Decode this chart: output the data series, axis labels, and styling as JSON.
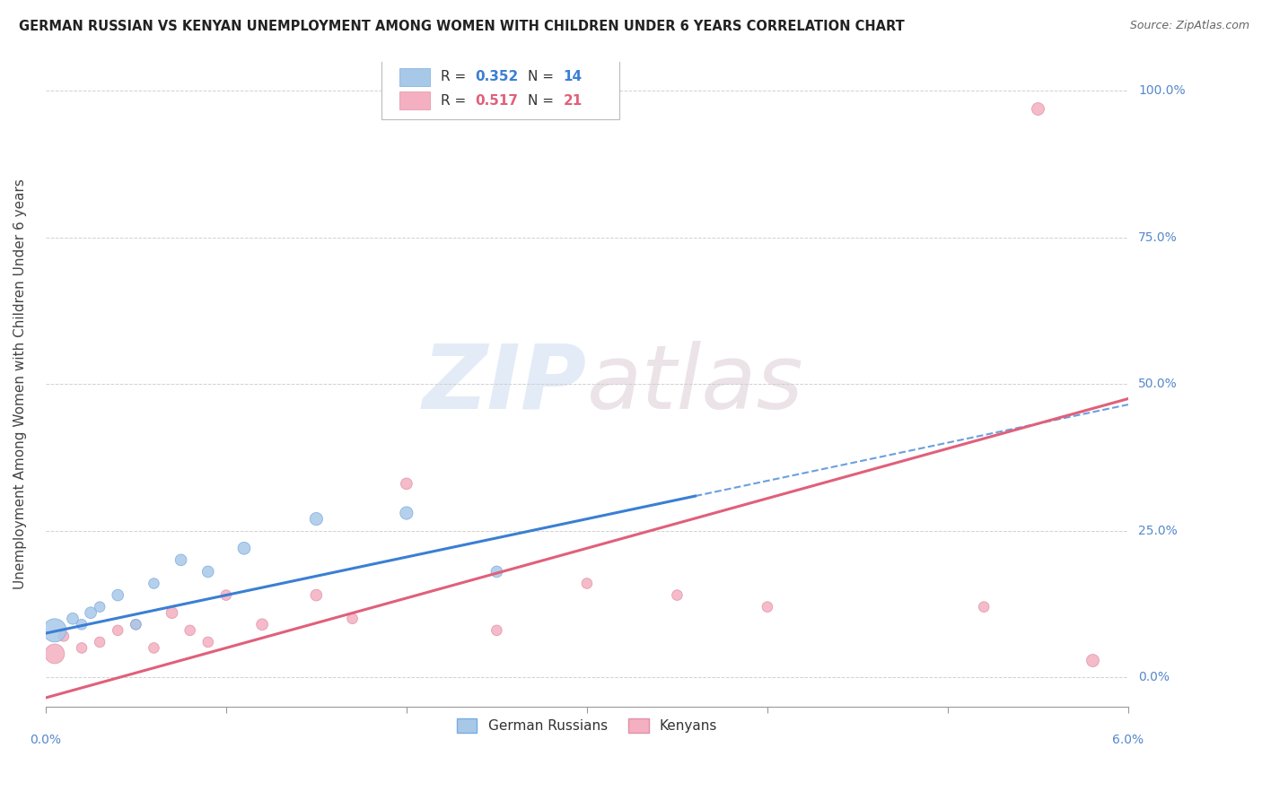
{
  "title": "GERMAN RUSSIAN VS KENYAN UNEMPLOYMENT AMONG WOMEN WITH CHILDREN UNDER 6 YEARS CORRELATION CHART",
  "source": "Source: ZipAtlas.com",
  "ylabel": "Unemployment Among Women with Children Under 6 years",
  "xlim": [
    0.0,
    6.0
  ],
  "ylim": [
    -5.0,
    105.0
  ],
  "yticks": [
    0.0,
    25.0,
    50.0,
    75.0,
    100.0
  ],
  "ytick_labels": [
    "0.0%",
    "25.0%",
    "50.0%",
    "75.0%",
    "100.0%"
  ],
  "watermark": "ZIPatlas",
  "blue_scatter": {
    "x": [
      0.05,
      0.15,
      0.2,
      0.25,
      0.3,
      0.4,
      0.5,
      0.6,
      0.75,
      0.9,
      1.1,
      1.5,
      2.0,
      2.5
    ],
    "y": [
      8.0,
      10.0,
      9.0,
      11.0,
      12.0,
      14.0,
      9.0,
      16.0,
      20.0,
      18.0,
      22.0,
      27.0,
      28.0,
      18.0
    ],
    "size": [
      500,
      120,
      100,
      120,
      100,
      120,
      100,
      100,
      120,
      120,
      140,
      150,
      150,
      120
    ]
  },
  "pink_scatter": {
    "x": [
      0.05,
      0.1,
      0.2,
      0.3,
      0.4,
      0.5,
      0.6,
      0.7,
      0.8,
      0.9,
      1.0,
      1.2,
      1.5,
      1.7,
      2.0,
      2.5,
      3.0,
      3.5,
      4.0,
      5.2
    ],
    "y": [
      4.0,
      7.0,
      5.0,
      6.0,
      8.0,
      9.0,
      5.0,
      11.0,
      8.0,
      6.0,
      14.0,
      9.0,
      14.0,
      10.0,
      33.0,
      8.0,
      16.0,
      14.0,
      12.0,
      12.0
    ],
    "size": [
      350,
      100,
      100,
      100,
      100,
      100,
      100,
      120,
      100,
      100,
      100,
      120,
      120,
      100,
      120,
      100,
      100,
      100,
      100,
      100
    ]
  },
  "kenyan_outlier_x": 5.5,
  "kenyan_outlier_y": 97.0,
  "kenyan_outlier_size": 100,
  "kenyan_low_x": 5.8,
  "kenyan_low_y": 3.0,
  "kenyan_low_size": 100,
  "blue_line_color": "#3a7fd4",
  "blue_line_solid_end": 3.6,
  "pink_line_color": "#e0607a",
  "blue_line_intercept": 7.5,
  "blue_line_slope": 6.5,
  "pink_line_intercept": -3.5,
  "pink_line_slope": 8.5,
  "title_fontsize": 11,
  "source_fontsize": 9,
  "axis_label_color": "#5588cc",
  "blue_scatter_color": "#a8c8e8",
  "blue_scatter_edge": "#7aace0",
  "pink_scatter_color": "#f4b0c0",
  "pink_scatter_edge": "#e090a8"
}
